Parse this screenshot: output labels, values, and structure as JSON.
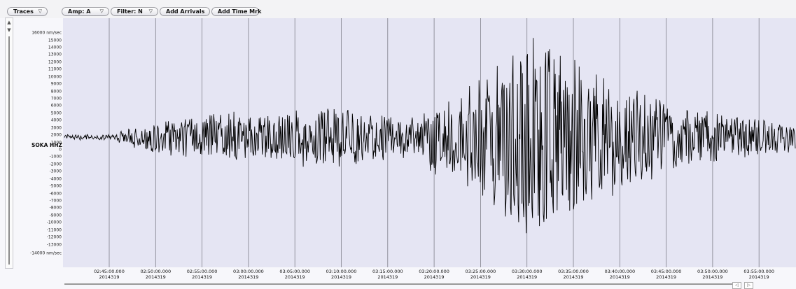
{
  "toolbar": {
    "traces": "Traces",
    "amp": "Amp: A",
    "filter": "Filter: N",
    "add_arrivals": "Add Arrivals",
    "add_time_mark": "Add Time Mrk"
  },
  "channel": "SOKA HHZ",
  "y_axis": {
    "top_label": "16000 nm/sec",
    "bottom_label": "-14000 nm/sec",
    "ticks": [
      "15000",
      "14000",
      "13000",
      "12000",
      "11000",
      "10000",
      "9000",
      "8000",
      "7000",
      "6000",
      "5000",
      "4000",
      "3000",
      "2000",
      "1000",
      "0",
      "-1000",
      "-2000",
      "-3000",
      "-4000",
      "-5000",
      "-6000",
      "-7000",
      "-8000",
      "-9000",
      "-10000",
      "-11000",
      "-12000",
      "-13000"
    ]
  },
  "x_axis": {
    "times": [
      "02:45:00.000",
      "02:50:00.000",
      "02:55:00.000",
      "03:00:00.000",
      "03:05:00.000",
      "03:10:00.000",
      "03:15:00.000",
      "03:20:00.000",
      "03:25:00.000",
      "03:30:00.000",
      "03:35:00.000",
      "03:40:00.000",
      "03:45:00.000",
      "03:50:00.000",
      "03:55:00.000"
    ],
    "date": "2014319"
  },
  "icons": {
    "dropdown": "▽",
    "scroll_up": "▲",
    "scroll_down": "▼",
    "scroll_left": "◁",
    "scroll_right": "▷"
  },
  "colors": {
    "plot_bg": "#e5e5f3",
    "trace": "#000000",
    "gridline": "#7f7f8a"
  }
}
